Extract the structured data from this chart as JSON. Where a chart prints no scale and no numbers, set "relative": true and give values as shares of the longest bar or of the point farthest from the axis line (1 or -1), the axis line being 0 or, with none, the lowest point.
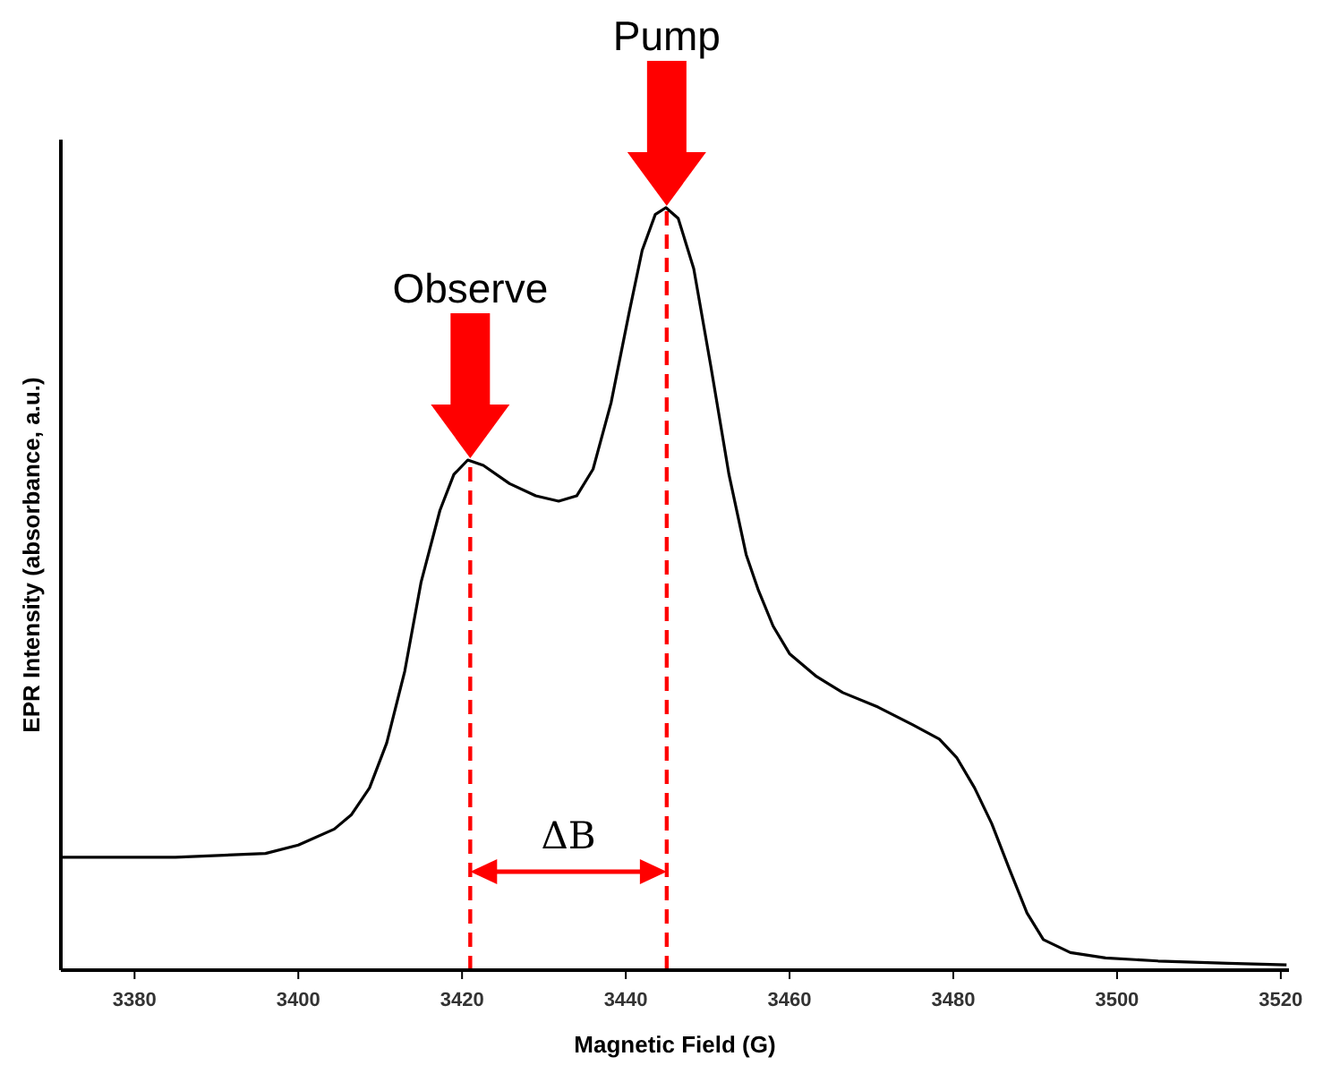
{
  "chart_data": {
    "type": "line",
    "relative": true,
    "xlabel": "Magnetic Field (G)",
    "ylabel": "EPR Intensity (absorbance, a.u.)",
    "xlim": [
      3371,
      3521
    ],
    "xticks": [
      3380,
      3400,
      3420,
      3440,
      3460,
      3480,
      3500,
      3520
    ],
    "tick_labels": "x",
    "grid": false,
    "marker": "none",
    "series": [
      {
        "color": "#000000",
        "line_style": "solid",
        "x": [
          3371,
          3385,
          3396,
          3400,
          3404.4,
          3406.5,
          3408.7,
          3410.8,
          3413,
          3415,
          3417.3,
          3419,
          3420.7,
          3422.6,
          3425.8,
          3429,
          3431.8,
          3434,
          3436,
          3438.2,
          3440.4,
          3442,
          3443.6,
          3444.9,
          3446.4,
          3448.3,
          3450.4,
          3452.6,
          3454.7,
          3456.2,
          3458,
          3460,
          3463.3,
          3466.5,
          3470.8,
          3475,
          3478.3,
          3480.4,
          3482.6,
          3484.7,
          3486.8,
          3489,
          3491,
          3494.3,
          3498.6,
          3505,
          3513.6,
          3520.7
        ],
        "values": [
          0.148,
          0.148,
          0.153,
          0.164,
          0.185,
          0.204,
          0.239,
          0.298,
          0.392,
          0.509,
          0.603,
          0.65,
          0.669,
          0.662,
          0.638,
          0.622,
          0.615,
          0.622,
          0.657,
          0.744,
          0.862,
          0.944,
          0.991,
          1,
          0.986,
          0.92,
          0.791,
          0.65,
          0.545,
          0.498,
          0.451,
          0.415,
          0.385,
          0.364,
          0.345,
          0.322,
          0.303,
          0.279,
          0.239,
          0.192,
          0.134,
          0.075,
          0.04,
          0.023,
          0.016,
          0.012,
          0.009,
          0.007
        ]
      }
    ],
    "ref_lines": [
      {
        "axis": "x",
        "value": 3421,
        "color": "#ff0000",
        "line_style": "dashed"
      },
      {
        "axis": "x",
        "value": 3445,
        "color": "#ff0000",
        "line_style": "dashed"
      }
    ],
    "annotations": [
      "Observe",
      "Pump",
      "ΔB"
    ]
  }
}
